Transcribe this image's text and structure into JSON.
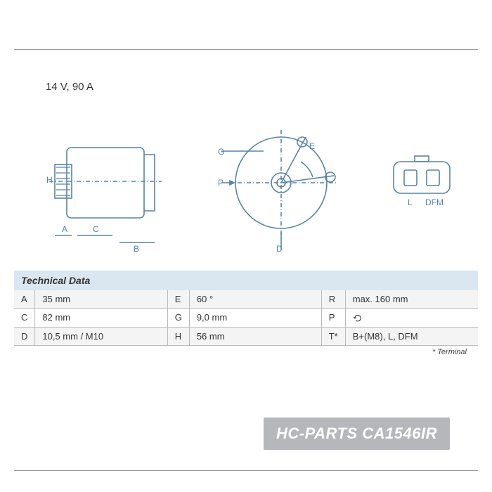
{
  "header": {
    "spec": "14 V, 90 A"
  },
  "diagram": {
    "stroke": "#5784a8",
    "stroke_width": 1.6,
    "sideview": {
      "labels": {
        "A": "A",
        "C": "C",
        "B": "B",
        "H": "H"
      }
    },
    "frontview": {
      "labels": {
        "E": "E",
        "G": "G",
        "P": "P",
        "D": "D"
      }
    },
    "connector": {
      "pin_labels": [
        "L",
        "DFM"
      ]
    }
  },
  "table": {
    "title": "Technical Data",
    "rows": [
      {
        "k1": "A",
        "v1": "35 mm",
        "k2": "E",
        "v2": "60 °",
        "k3": "R",
        "v3": "max. 160 mm"
      },
      {
        "k1": "C",
        "v1": "82 mm",
        "k2": "G",
        "v2": "9,0 mm",
        "k3": "P",
        "v3": "__ROT__"
      },
      {
        "k1": "D",
        "v1": "10,5 mm / M10",
        "k2": "H",
        "v2": "56 mm",
        "k3": "T*",
        "v3": "B+(M8), L, DFM"
      }
    ],
    "footnote": "* Terminal",
    "colors": {
      "header_bg": "#dbe7f0",
      "row_alt_bg": "#f4f4f4",
      "border": "#bbbbbb"
    }
  },
  "watermark": {
    "brand": "HC-PARTS",
    "partno": "CA1546IR",
    "bg": "#b6b7bb",
    "fg": "#ffffff"
  }
}
